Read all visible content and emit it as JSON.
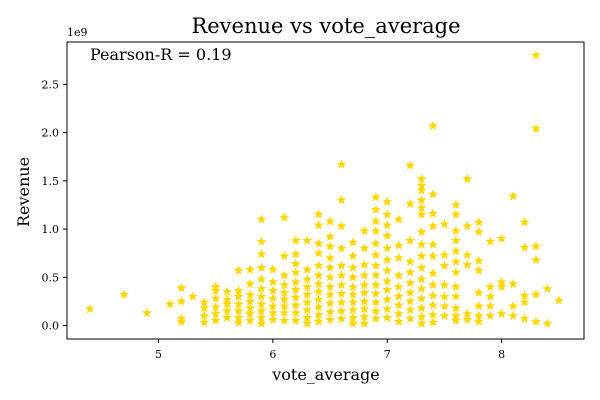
{
  "chart_data": {
    "type": "scatter",
    "title": "Revenue vs vote_average",
    "xlabel": "vote_average",
    "ylabel": "Revenue",
    "y_offset_label": "1e9",
    "annotation": "Pearson-R = 0.19",
    "x_ticks": [
      "5",
      "6",
      "7",
      "8"
    ],
    "y_ticks": [
      "0.0",
      "0.5",
      "1.0",
      "1.5",
      "2.0",
      "2.5"
    ],
    "x_tick_values": [
      5,
      6,
      7,
      8
    ],
    "y_tick_values": [
      0,
      0.5,
      1.0,
      1.5,
      2.0,
      2.5
    ],
    "xlim": [
      4.2,
      8.72
    ],
    "ylim": [
      -0.14,
      2.94
    ],
    "marker": "star",
    "color": "#FFD700",
    "grid": false,
    "points": [
      [
        4.4,
        0.17
      ],
      [
        4.7,
        0.32
      ],
      [
        4.9,
        0.13
      ],
      [
        5.1,
        0.22
      ],
      [
        5.2,
        0.39
      ],
      [
        5.2,
        0.25
      ],
      [
        5.2,
        0.07
      ],
      [
        5.2,
        0.04
      ],
      [
        5.3,
        0.3
      ],
      [
        5.4,
        0.24
      ],
      [
        5.4,
        0.18
      ],
      [
        5.4,
        0.1
      ],
      [
        5.4,
        0.03
      ],
      [
        5.5,
        0.4
      ],
      [
        5.5,
        0.36
      ],
      [
        5.5,
        0.28
      ],
      [
        5.5,
        0.19
      ],
      [
        5.5,
        0.12
      ],
      [
        5.5,
        0.05
      ],
      [
        5.6,
        0.35
      ],
      [
        5.6,
        0.27
      ],
      [
        5.6,
        0.22
      ],
      [
        5.6,
        0.15
      ],
      [
        5.6,
        0.08
      ],
      [
        5.7,
        0.57
      ],
      [
        5.7,
        0.36
      ],
      [
        5.7,
        0.3
      ],
      [
        5.7,
        0.22
      ],
      [
        5.7,
        0.15
      ],
      [
        5.7,
        0.08
      ],
      [
        5.7,
        0.03
      ],
      [
        5.8,
        0.58
      ],
      [
        5.8,
        0.43
      ],
      [
        5.8,
        0.32
      ],
      [
        5.8,
        0.25
      ],
      [
        5.8,
        0.18
      ],
      [
        5.8,
        0.12
      ],
      [
        5.8,
        0.05
      ],
      [
        5.9,
        1.1
      ],
      [
        5.9,
        0.87
      ],
      [
        5.9,
        0.74
      ],
      [
        5.9,
        0.6
      ],
      [
        5.9,
        0.48
      ],
      [
        5.9,
        0.38
      ],
      [
        5.9,
        0.3
      ],
      [
        5.9,
        0.22
      ],
      [
        5.9,
        0.15
      ],
      [
        5.9,
        0.08
      ],
      [
        5.9,
        0.02
      ],
      [
        6.0,
        0.58
      ],
      [
        6.0,
        0.45
      ],
      [
        6.0,
        0.36
      ],
      [
        6.0,
        0.28
      ],
      [
        6.0,
        0.2
      ],
      [
        6.0,
        0.13
      ],
      [
        6.0,
        0.06
      ],
      [
        6.1,
        1.12
      ],
      [
        6.1,
        0.72
      ],
      [
        6.1,
        0.52
      ],
      [
        6.1,
        0.42
      ],
      [
        6.1,
        0.34
      ],
      [
        6.1,
        0.27
      ],
      [
        6.1,
        0.2
      ],
      [
        6.1,
        0.13
      ],
      [
        6.1,
        0.05
      ],
      [
        6.2,
        0.88
      ],
      [
        6.2,
        0.74
      ],
      [
        6.2,
        0.64
      ],
      [
        6.2,
        0.55
      ],
      [
        6.2,
        0.45
      ],
      [
        6.2,
        0.37
      ],
      [
        6.2,
        0.29
      ],
      [
        6.2,
        0.21
      ],
      [
        6.2,
        0.13
      ],
      [
        6.2,
        0.05
      ],
      [
        6.3,
        0.88
      ],
      [
        6.3,
        0.58
      ],
      [
        6.3,
        0.48
      ],
      [
        6.3,
        0.4
      ],
      [
        6.3,
        0.32
      ],
      [
        6.3,
        0.24
      ],
      [
        6.3,
        0.16
      ],
      [
        6.3,
        0.08
      ],
      [
        6.3,
        0.02
      ],
      [
        6.4,
        1.15
      ],
      [
        6.4,
        1.04
      ],
      [
        6.4,
        0.85
      ],
      [
        6.4,
        0.75
      ],
      [
        6.4,
        0.62
      ],
      [
        6.4,
        0.52
      ],
      [
        6.4,
        0.43
      ],
      [
        6.4,
        0.35
      ],
      [
        6.4,
        0.27
      ],
      [
        6.4,
        0.19
      ],
      [
        6.4,
        0.11
      ],
      [
        6.4,
        0.04
      ],
      [
        6.5,
        1.08
      ],
      [
        6.5,
        0.92
      ],
      [
        6.5,
        0.82
      ],
      [
        6.5,
        0.7
      ],
      [
        6.5,
        0.6
      ],
      [
        6.5,
        0.5
      ],
      [
        6.5,
        0.4
      ],
      [
        6.5,
        0.32
      ],
      [
        6.5,
        0.23
      ],
      [
        6.5,
        0.14
      ],
      [
        6.5,
        0.06
      ],
      [
        6.6,
        1.67
      ],
      [
        6.6,
        1.3
      ],
      [
        6.6,
        1.03
      ],
      [
        6.6,
        0.8
      ],
      [
        6.6,
        0.62
      ],
      [
        6.6,
        0.52
      ],
      [
        6.6,
        0.42
      ],
      [
        6.6,
        0.33
      ],
      [
        6.6,
        0.24
      ],
      [
        6.6,
        0.15
      ],
      [
        6.6,
        0.07
      ],
      [
        6.7,
        0.86
      ],
      [
        6.7,
        0.72
      ],
      [
        6.7,
        0.6
      ],
      [
        6.7,
        0.5
      ],
      [
        6.7,
        0.4
      ],
      [
        6.7,
        0.32
      ],
      [
        6.7,
        0.24
      ],
      [
        6.7,
        0.16
      ],
      [
        6.7,
        0.08
      ],
      [
        6.7,
        0.02
      ],
      [
        6.8,
        0.98
      ],
      [
        6.8,
        0.8
      ],
      [
        6.8,
        0.63
      ],
      [
        6.8,
        0.52
      ],
      [
        6.8,
        0.42
      ],
      [
        6.8,
        0.34
      ],
      [
        6.8,
        0.25
      ],
      [
        6.8,
        0.17
      ],
      [
        6.8,
        0.09
      ],
      [
        6.8,
        0.02
      ],
      [
        6.9,
        1.33
      ],
      [
        6.9,
        1.2
      ],
      [
        6.9,
        1.08
      ],
      [
        6.9,
        0.98
      ],
      [
        6.9,
        0.85
      ],
      [
        6.9,
        0.73
      ],
      [
        6.9,
        0.62
      ],
      [
        6.9,
        0.52
      ],
      [
        6.9,
        0.42
      ],
      [
        6.9,
        0.33
      ],
      [
        6.9,
        0.24
      ],
      [
        6.9,
        0.15
      ],
      [
        6.9,
        0.07
      ],
      [
        7.0,
        1.28
      ],
      [
        7.0,
        1.15
      ],
      [
        7.0,
        1.04
      ],
      [
        7.0,
        0.93
      ],
      [
        7.0,
        0.8
      ],
      [
        7.0,
        0.68
      ],
      [
        7.0,
        0.57
      ],
      [
        7.0,
        0.46
      ],
      [
        7.0,
        0.37
      ],
      [
        7.0,
        0.27
      ],
      [
        7.0,
        0.17
      ],
      [
        7.0,
        0.08
      ],
      [
        7.1,
        1.1
      ],
      [
        7.1,
        0.83
      ],
      [
        7.1,
        0.7
      ],
      [
        7.1,
        0.52
      ],
      [
        7.1,
        0.4
      ],
      [
        7.1,
        0.3
      ],
      [
        7.1,
        0.21
      ],
      [
        7.1,
        0.12
      ],
      [
        7.1,
        0.04
      ],
      [
        7.2,
        1.66
      ],
      [
        7.2,
        1.26
      ],
      [
        7.2,
        0.88
      ],
      [
        7.2,
        0.66
      ],
      [
        7.2,
        0.55
      ],
      [
        7.2,
        0.44
      ],
      [
        7.2,
        0.34
      ],
      [
        7.2,
        0.25
      ],
      [
        7.2,
        0.16
      ],
      [
        7.2,
        0.07
      ],
      [
        7.3,
        1.52
      ],
      [
        7.3,
        1.45
      ],
      [
        7.3,
        1.4
      ],
      [
        7.3,
        1.3
      ],
      [
        7.3,
        1.22
      ],
      [
        7.3,
        1.15
      ],
      [
        7.3,
        0.97
      ],
      [
        7.3,
        0.84
      ],
      [
        7.3,
        0.72
      ],
      [
        7.3,
        0.6
      ],
      [
        7.3,
        0.48
      ],
      [
        7.3,
        0.38
      ],
      [
        7.3,
        0.28
      ],
      [
        7.3,
        0.18
      ],
      [
        7.3,
        0.09
      ],
      [
        7.3,
        0.02
      ],
      [
        7.4,
        2.07
      ],
      [
        7.4,
        1.36
      ],
      [
        7.4,
        1.16
      ],
      [
        7.4,
        1.03
      ],
      [
        7.4,
        0.84
      ],
      [
        7.4,
        0.72
      ],
      [
        7.4,
        0.54
      ],
      [
        7.4,
        0.42
      ],
      [
        7.4,
        0.31
      ],
      [
        7.4,
        0.21
      ],
      [
        7.4,
        0.11
      ],
      [
        7.4,
        0.03
      ],
      [
        7.5,
        1.05
      ],
      [
        7.5,
        0.73
      ],
      [
        7.5,
        0.62
      ],
      [
        7.5,
        0.42
      ],
      [
        7.5,
        0.3
      ],
      [
        7.5,
        0.2
      ],
      [
        7.5,
        0.1
      ],
      [
        7.6,
        1.25
      ],
      [
        7.6,
        1.15
      ],
      [
        7.6,
        0.98
      ],
      [
        7.6,
        0.88
      ],
      [
        7.6,
        0.77
      ],
      [
        7.6,
        0.66
      ],
      [
        7.6,
        0.55
      ],
      [
        7.6,
        0.4
      ],
      [
        7.6,
        0.3
      ],
      [
        7.6,
        0.18
      ],
      [
        7.6,
        0.1
      ],
      [
        7.6,
        0.05
      ],
      [
        7.7,
        1.52
      ],
      [
        7.7,
        1.03
      ],
      [
        7.7,
        0.73
      ],
      [
        7.7,
        0.63
      ],
      [
        7.7,
        0.12
      ],
      [
        7.7,
        0.06
      ],
      [
        7.8,
        1.07
      ],
      [
        7.8,
        0.97
      ],
      [
        7.8,
        0.67
      ],
      [
        7.8,
        0.57
      ],
      [
        7.8,
        0.34
      ],
      [
        7.8,
        0.2
      ],
      [
        7.8,
        0.1
      ],
      [
        7.8,
        0.04
      ],
      [
        7.9,
        0.87
      ],
      [
        7.9,
        0.4
      ],
      [
        7.9,
        0.3
      ],
      [
        7.9,
        0.2
      ],
      [
        7.9,
        0.1
      ],
      [
        8.0,
        0.9
      ],
      [
        8.0,
        0.45
      ],
      [
        8.0,
        0.4
      ],
      [
        8.0,
        0.12
      ],
      [
        8.1,
        1.34
      ],
      [
        8.1,
        0.43
      ],
      [
        8.1,
        0.2
      ],
      [
        8.1,
        0.1
      ],
      [
        8.2,
        1.07
      ],
      [
        8.2,
        0.81
      ],
      [
        8.2,
        0.31
      ],
      [
        8.2,
        0.24
      ],
      [
        8.2,
        0.07
      ],
      [
        8.3,
        2.8
      ],
      [
        8.3,
        2.04
      ],
      [
        8.3,
        0.82
      ],
      [
        8.3,
        0.68
      ],
      [
        8.3,
        0.32
      ],
      [
        8.3,
        0.04
      ],
      [
        8.4,
        0.38
      ],
      [
        8.4,
        0.02
      ],
      [
        8.5,
        0.26
      ]
    ]
  }
}
